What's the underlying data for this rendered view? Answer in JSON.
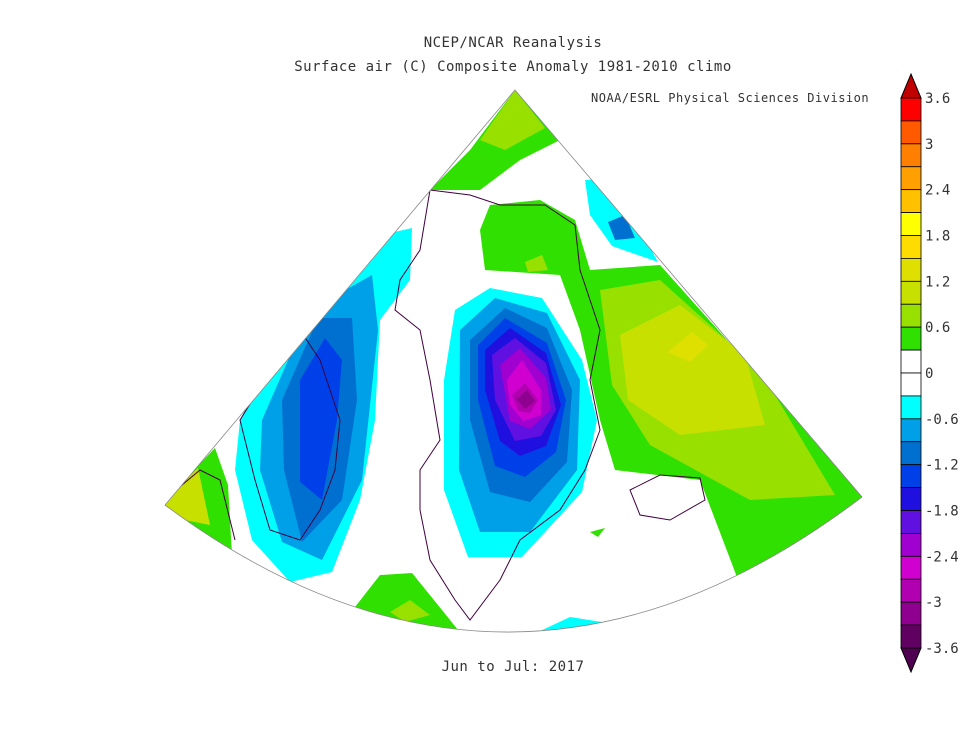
{
  "header": {
    "title": "NCEP/NCAR Reanalysis",
    "subtitle": "Surface air (C) Composite Anomaly 1981-2010 climo",
    "credit": "NOAA/ESRL Physical Sciences Division"
  },
  "footer": {
    "period": "Jun to Jul: 2017"
  },
  "colorbar": {
    "min": -3.6,
    "max": 3.6,
    "step": 0.3,
    "labels": [
      "3.6",
      "3",
      "2.4",
      "1.8",
      "1.2",
      "0.6",
      "0",
      "-0.6",
      "-1.2",
      "-1.8",
      "-2.4",
      "-3",
      "-3.6"
    ],
    "colors_top_to_bottom": [
      "#ff0000",
      "#ff5a00",
      "#ff8000",
      "#ffa000",
      "#ffc000",
      "#ffff00",
      "#ffdc00",
      "#e0e000",
      "#c8e000",
      "#98e000",
      "#30e000",
      "#ffffff",
      "#ffffff",
      "#00ffff",
      "#00a0e8",
      "#0070d0",
      "#0040e8",
      "#2010e0",
      "#6010e0",
      "#a000d0",
      "#d000d0",
      "#b000b0",
      "#900090",
      "#600060"
    ],
    "over_color": "#c00000",
    "under_color": "#500050"
  }
}
